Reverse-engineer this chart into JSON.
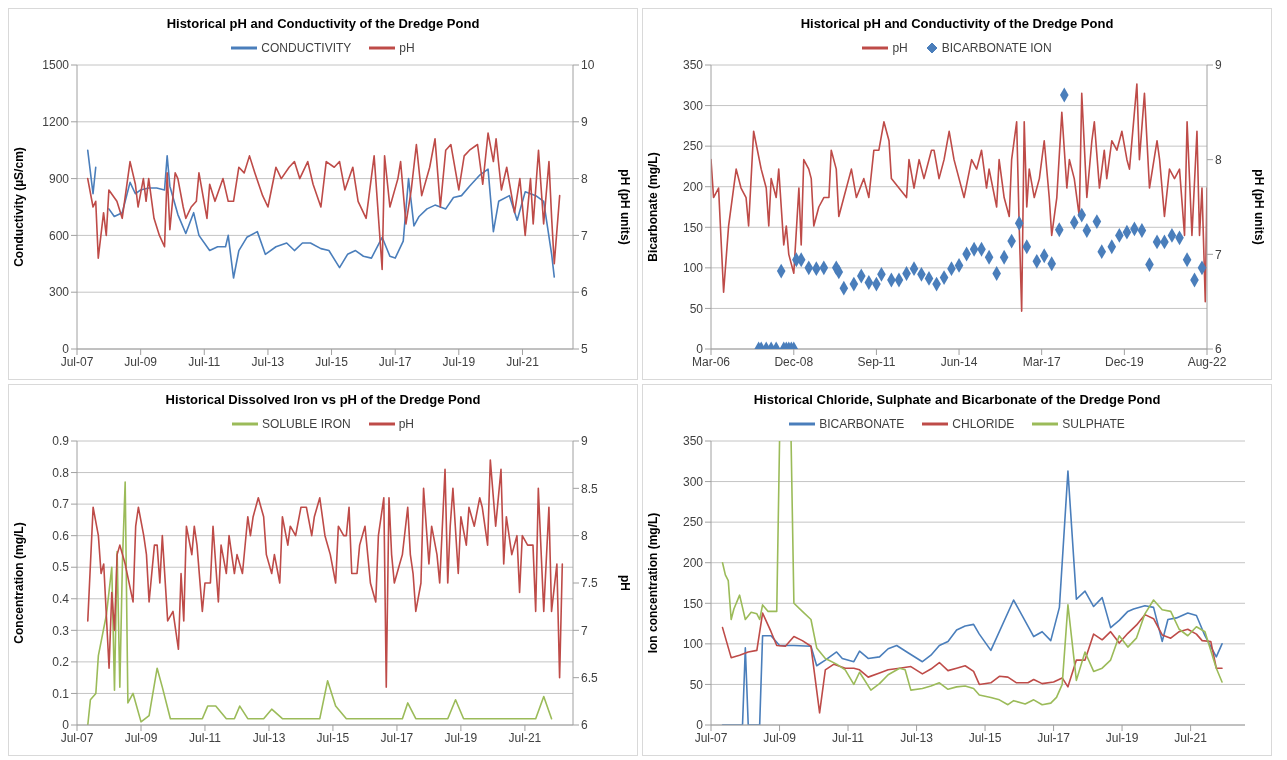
{
  "chart_data": [
    {
      "type": "line",
      "title": "Historical pH and Conductivity of the Dredge Pond",
      "ylabel": "Conductivity (µS/cm)",
      "y2label": "pH (pH units)",
      "xlim": [
        "2007-07",
        "2023-02"
      ],
      "xticks": [
        {
          "value": "2007-07",
          "label": "Jul-07"
        },
        {
          "value": "2009-07",
          "label": "Jul-09"
        },
        {
          "value": "2011-07",
          "label": "Jul-11"
        },
        {
          "value": "2013-07",
          "label": "Jul-13"
        },
        {
          "value": "2015-07",
          "label": "Jul-15"
        },
        {
          "value": "2017-07",
          "label": "Jul-17"
        },
        {
          "value": "2019-07",
          "label": "Jul-19"
        },
        {
          "value": "2021-07",
          "label": "Jul-21"
        }
      ],
      "ylim": [
        0,
        1500
      ],
      "yticks": [
        0,
        300,
        600,
        900,
        1200,
        1500
      ],
      "y2lim": [
        5,
        10
      ],
      "y2ticks": [
        5,
        6,
        7,
        8,
        9,
        10
      ],
      "grid": "y",
      "legend": "top",
      "marker": "none",
      "series": [
        {
          "name": "CONDUCTIVITY",
          "color": "#4a7ebb",
          "x": [
            "2007-11",
            "2008-01",
            "2008-02",
            "2008-04",
            "2008-07",
            "2008-09",
            "2008-12",
            "2009-03",
            "2009-05",
            "2009-07",
            "2009-10",
            "2010-01",
            "2010-04",
            "2010-05",
            "2010-06",
            "2010-09",
            "2010-12",
            "2011-03",
            "2011-05",
            "2011-09",
            "2011-12",
            "2012-03",
            "2012-04",
            "2012-06",
            "2012-08",
            "2012-11",
            "2013-03",
            "2013-06",
            "2013-10",
            "2014-02",
            "2014-05",
            "2014-08",
            "2014-11",
            "2015-03",
            "2015-06",
            "2015-10",
            "2016-01",
            "2016-04",
            "2016-07",
            "2016-10",
            "2017-02",
            "2017-05",
            "2017-07",
            "2017-10",
            "2017-12",
            "2018-02",
            "2018-04",
            "2018-07",
            "2018-10",
            "2019-02",
            "2019-05",
            "2019-08",
            "2019-11",
            "2020-03",
            "2020-06",
            "2020-08",
            "2020-10",
            "2021-02",
            "2021-05",
            "2021-08",
            "2021-12",
            "2022-03",
            "2022-06",
            "2022-07"
          ],
          "values": [
            1050,
            820,
            960,
            null,
            740,
            700,
            720,
            880,
            820,
            840,
            850,
            850,
            840,
            1020,
            860,
            710,
            610,
            720,
            600,
            520,
            540,
            540,
            600,
            375,
            520,
            590,
            620,
            500,
            540,
            560,
            520,
            560,
            560,
            530,
            520,
            430,
            500,
            520,
            490,
            480,
            590,
            490,
            480,
            570,
            900,
            650,
            700,
            740,
            760,
            740,
            800,
            810,
            860,
            920,
            950,
            620,
            780,
            810,
            680,
            830,
            810,
            780,
            500,
            380
          ]
        },
        {
          "name": "pH",
          "color": "#be4b48",
          "axis": "y2",
          "x": [
            "2007-11",
            "2008-01",
            "2008-02",
            "2008-03",
            "2008-05",
            "2008-06",
            "2008-07",
            "2008-10",
            "2008-12",
            "2009-03",
            "2009-05",
            "2009-06",
            "2009-08",
            "2009-09",
            "2009-10",
            "2009-12",
            "2010-02",
            "2010-04",
            "2010-05",
            "2010-06",
            "2010-08",
            "2010-09",
            "2010-11",
            "2010-12",
            "2011-02",
            "2011-04",
            "2011-05",
            "2011-08",
            "2011-09",
            "2011-11",
            "2012-02",
            "2012-04",
            "2012-06",
            "2012-08",
            "2012-10",
            "2012-12",
            "2013-02",
            "2013-05",
            "2013-07",
            "2013-10",
            "2013-12",
            "2014-03",
            "2014-05",
            "2014-07",
            "2014-10",
            "2014-12",
            "2015-03",
            "2015-05",
            "2015-08",
            "2015-10",
            "2015-12",
            "2016-03",
            "2016-05",
            "2016-08",
            "2016-11",
            "2017-02",
            "2017-03",
            "2017-05",
            "2017-08",
            "2017-09",
            "2017-11",
            "2018-01",
            "2018-03",
            "2018-05",
            "2018-08",
            "2018-10",
            "2018-12",
            "2019-02",
            "2019-04",
            "2019-07",
            "2019-09",
            "2019-11",
            "2020-02",
            "2020-04",
            "2020-06",
            "2020-08",
            "2020-09",
            "2020-11",
            "2021-01",
            "2021-04",
            "2021-06",
            "2021-08",
            "2021-10",
            "2021-11",
            "2022-01",
            "2022-03",
            "2022-05",
            "2022-06",
            "2022-07",
            "2022-09"
          ],
          "values": [
            8.0,
            7.5,
            7.6,
            6.6,
            7.4,
            7.0,
            7.8,
            7.6,
            7.3,
            8.3,
            7.9,
            7.5,
            8.0,
            7.6,
            8.0,
            7.3,
            7.0,
            6.8,
            8.1,
            7.1,
            8.1,
            8.0,
            7.5,
            7.3,
            7.5,
            7.6,
            8.1,
            7.3,
            7.9,
            7.6,
            8.0,
            7.6,
            7.6,
            8.2,
            8.1,
            8.4,
            8.1,
            7.7,
            7.5,
            8.2,
            8.0,
            8.2,
            8.3,
            8.0,
            8.3,
            7.9,
            7.5,
            8.3,
            8.2,
            8.3,
            7.8,
            8.2,
            7.6,
            7.3,
            8.4,
            6.4,
            8.4,
            7.5,
            8.0,
            8.3,
            7.2,
            7.8,
            8.6,
            7.7,
            8.2,
            8.7,
            7.5,
            8.5,
            8.6,
            7.8,
            8.4,
            8.5,
            8.6,
            7.9,
            8.8,
            8.3,
            8.7,
            7.8,
            8.2,
            7.4,
            8.0,
            7.0,
            8.0,
            7.2,
            8.5,
            7.2,
            8.3,
            7.3,
            6.5,
            7.7
          ]
        }
      ]
    },
    {
      "type": "line",
      "title": "Historical pH and Conductivity of the Dredge Pond",
      "ylabel": "Bicarbonate (mg/L)",
      "y2label": "pH (pH units)",
      "xlim": [
        "2006-03",
        "2022-08-31"
      ],
      "xticks": [
        {
          "value": "2006-03",
          "label": "Mar-06"
        },
        {
          "value": "2008-12",
          "label": "Dec-08"
        },
        {
          "value": "2011-09",
          "label": "Sep-11"
        },
        {
          "value": "2014-06",
          "label": "Jun-14"
        },
        {
          "value": "2017-03",
          "label": "Mar-17"
        },
        {
          "value": "2019-12",
          "label": "Dec-19"
        },
        {
          "value": "2022-08-31",
          "label": "Aug-22"
        }
      ],
      "ylim": [
        0,
        350
      ],
      "yticks": [
        0,
        50,
        100,
        150,
        200,
        250,
        300,
        350
      ],
      "y2lim": [
        6,
        9
      ],
      "y2ticks": [
        6,
        7,
        8,
        9
      ],
      "grid": "y",
      "legend": "top",
      "marker": "none",
      "series": [
        {
          "name": "pH",
          "color": "#be4b48",
          "axis": "y2",
          "x": [
            "2006-03",
            "2006-04",
            "2006-06",
            "2006-08",
            "2006-10",
            "2006-12",
            "2007-01",
            "2007-03",
            "2007-05",
            "2007-06",
            "2007-08",
            "2007-11",
            "2008-01",
            "2008-02",
            "2008-03",
            "2008-05",
            "2008-06",
            "2008-08",
            "2008-09",
            "2008-10",
            "2008-12",
            "2009-02",
            "2009-03",
            "2009-04",
            "2009-06",
            "2009-07",
            "2009-08",
            "2009-10",
            "2009-12",
            "2010-02",
            "2010-03",
            "2010-05",
            "2010-06",
            "2010-08",
            "2010-11",
            "2011-01",
            "2011-04",
            "2011-06",
            "2011-08",
            "2011-10",
            "2011-12",
            "2012-02",
            "2012-03",
            "2012-06",
            "2012-09",
            "2012-10",
            "2012-12",
            "2013-02",
            "2013-04",
            "2013-07",
            "2013-08",
            "2013-10",
            "2013-12",
            "2014-02",
            "2014-04",
            "2014-06",
            "2014-08",
            "2014-11",
            "2015-01",
            "2015-03",
            "2015-05",
            "2015-06",
            "2015-09",
            "2015-10",
            "2015-12",
            "2016-02",
            "2016-03",
            "2016-05",
            "2016-06",
            "2016-07",
            "2016-08",
            "2016-09",
            "2016-10",
            "2016-12",
            "2017-02",
            "2017-04",
            "2017-06",
            "2017-07",
            "2017-09",
            "2017-11",
            "2018-01",
            "2018-02",
            "2018-04",
            "2018-06",
            "2018-07",
            "2018-09",
            "2018-11",
            "2018-12",
            "2019-02",
            "2019-04",
            "2019-05",
            "2019-07",
            "2019-09",
            "2019-11",
            "2020-01",
            "2020-02",
            "2020-05",
            "2020-06",
            "2020-08",
            "2020-10",
            "2021-01",
            "2021-02",
            "2021-04",
            "2021-06",
            "2021-08",
            "2021-10",
            "2021-12",
            "2022-01",
            "2022-03",
            "2022-05",
            "2022-06",
            "2022-07",
            "2022-08-10",
            "2022-08-31"
          ],
          "values": [
            8.0,
            7.6,
            7.7,
            6.6,
            7.3,
            7.7,
            7.9,
            7.7,
            7.6,
            7.3,
            8.3,
            7.9,
            7.7,
            7.3,
            7.8,
            7.6,
            7.9,
            7.1,
            7.3,
            7.0,
            6.8,
            7.7,
            7.1,
            8.0,
            7.9,
            7.8,
            7.3,
            7.5,
            7.6,
            7.6,
            8.1,
            7.9,
            7.4,
            7.6,
            7.9,
            7.6,
            7.8,
            7.6,
            8.1,
            8.1,
            8.4,
            8.2,
            7.8,
            7.7,
            7.6,
            8.0,
            7.7,
            8.0,
            7.8,
            8.1,
            8.1,
            7.8,
            8.0,
            8.3,
            8.0,
            7.8,
            7.6,
            8.0,
            7.9,
            8.1,
            7.7,
            7.9,
            7.5,
            8.0,
            7.6,
            7.4,
            8.0,
            8.4,
            7.3,
            6.4,
            8.4,
            7.5,
            7.9,
            7.6,
            7.8,
            8.2,
            7.6,
            7.2,
            7.6,
            8.5,
            7.7,
            8.0,
            7.8,
            7.4,
            8.7,
            7.6,
            8.2,
            8.4,
            7.7,
            8.1,
            7.8,
            8.2,
            8.1,
            8.3,
            8.0,
            7.9,
            8.8,
            8.0,
            8.7,
            7.7,
            8.2,
            8.0,
            7.4,
            7.9,
            7.8,
            7.9,
            7.2,
            8.4,
            7.2,
            8.3,
            7.2,
            7.7,
            6.5,
            7.7
          ]
        },
        {
          "name": "BICARBONATE ION",
          "color": "#4a7ebb",
          "type": "scatter",
          "marker": "diamond",
          "x": [
            "2007-10",
            "2007-11",
            "2008-01",
            "2008-03",
            "2008-05",
            "2008-07",
            "2008-08",
            "2008-09",
            "2008-10",
            "2008-11",
            "2008-12",
            "2009-01",
            "2009-03",
            "2009-06",
            "2009-09",
            "2009-12",
            "2010-05",
            "2010-06",
            "2010-08",
            "2010-12",
            "2011-03",
            "2011-06",
            "2011-09",
            "2011-11",
            "2012-03",
            "2012-06",
            "2012-09",
            "2012-12",
            "2013-03",
            "2013-06",
            "2013-09",
            "2013-12",
            "2014-03",
            "2014-06",
            "2014-09",
            "2014-12",
            "2015-03",
            "2015-06",
            "2015-09",
            "2015-12",
            "2016-03",
            "2016-06",
            "2016-09",
            "2017-01",
            "2017-04",
            "2017-07",
            "2017-10",
            "2017-12",
            "2018-04",
            "2018-07",
            "2018-09",
            "2019-01",
            "2019-03",
            "2019-07",
            "2019-10",
            "2020-01",
            "2020-04",
            "2020-07",
            "2020-10",
            "2021-01",
            "2021-04",
            "2021-07",
            "2021-10",
            "2022-01",
            "2022-04",
            "2022-07"
          ],
          "values": [
            0,
            0,
            0,
            0,
            0,
            96,
            0,
            0,
            0,
            0,
            0,
            110,
            110,
            100,
            99,
            100,
            100,
            95,
            75,
            80,
            90,
            82,
            80,
            92,
            85,
            85,
            93,
            99,
            92,
            87,
            80,
            88,
            99,
            103,
            117,
            123,
            123,
            113,
            93,
            113,
            133,
            155,
            126,
            108,
            115,
            105,
            147,
            313,
            156,
            165,
            146,
            157,
            120,
            126,
            140,
            144,
            148,
            146,
            104,
            132,
            132,
            140,
            137,
            110,
            85,
            100
          ]
        }
      ]
    },
    {
      "type": "line",
      "title": "Historical Dissolved Iron vs pH of the Dredge Pond",
      "ylabel": "Concentration (mg/L)",
      "y2label": "pH",
      "xlim": [
        "2007-07",
        "2023-01"
      ],
      "xticks": [
        {
          "value": "2007-07",
          "label": "Jul-07"
        },
        {
          "value": "2009-07",
          "label": "Jul-09"
        },
        {
          "value": "2011-07",
          "label": "Jul-11"
        },
        {
          "value": "2013-07",
          "label": "Jul-13"
        },
        {
          "value": "2015-07",
          "label": "Jul-15"
        },
        {
          "value": "2017-07",
          "label": "Jul-17"
        },
        {
          "value": "2019-07",
          "label": "Jul-19"
        },
        {
          "value": "2021-07",
          "label": "Jul-21"
        }
      ],
      "ylim": [
        0,
        0.9
      ],
      "yticks": [
        0,
        0.1,
        0.2,
        0.3,
        0.4,
        0.5,
        0.6,
        0.7,
        0.8,
        0.9
      ],
      "y2lim": [
        6,
        9
      ],
      "y2ticks": [
        6,
        6.5,
        7,
        7.5,
        8,
        8.5,
        9
      ],
      "grid": "y",
      "legend": "top",
      "marker": "none",
      "series": [
        {
          "name": "SOLUBLE IRON",
          "color": "#9bbb59",
          "x": [
            "2007-11",
            "2007-12",
            "2008-02",
            "2008-03",
            "2008-06",
            "2008-08",
            "2008-09",
            "2008-10",
            "2008-11",
            "2008-12",
            "2009-01",
            "2009-02",
            "2009-04",
            "2009-07",
            "2009-10",
            "2010-01",
            "2010-03",
            "2010-06",
            "2011-06",
            "2011-08",
            "2011-11",
            "2012-03",
            "2012-06",
            "2012-08",
            "2012-11",
            "2013-05",
            "2013-08",
            "2013-12",
            "2015-02",
            "2015-05",
            "2015-08",
            "2015-12",
            "2017-09",
            "2017-11",
            "2018-02",
            "2019-02",
            "2019-05",
            "2019-08",
            "2021-11",
            "2022-02",
            "2022-05"
          ],
          "values": [
            0,
            0.08,
            0.1,
            0.22,
            0.35,
            0.5,
            0.11,
            0.55,
            0.12,
            0.52,
            0.77,
            0.07,
            0.1,
            0.01,
            0.03,
            0.18,
            0.12,
            0.02,
            0.02,
            0.06,
            0.06,
            0.02,
            0.02,
            0.06,
            0.02,
            0.02,
            0.05,
            0.02,
            0.02,
            0.14,
            0.06,
            0.02,
            0.02,
            0.07,
            0.02,
            0.02,
            0.08,
            0.02,
            0.02,
            0.09,
            0.02
          ]
        },
        {
          "name": "pH",
          "color": "#be4b48",
          "axis": "y2",
          "x": [
            "2007-11",
            "2008-01",
            "2008-03",
            "2008-04",
            "2008-05",
            "2008-07",
            "2008-08",
            "2008-09",
            "2008-10",
            "2008-11",
            "2009-01",
            "2009-04",
            "2009-05",
            "2009-06",
            "2009-08",
            "2009-09",
            "2009-10",
            "2009-12",
            "2010-01",
            "2010-02",
            "2010-03",
            "2010-05",
            "2010-07",
            "2010-09",
            "2010-10",
            "2010-11",
            "2010-12",
            "2011-02",
            "2011-03",
            "2011-04",
            "2011-06",
            "2011-07",
            "2011-09",
            "2011-10",
            "2011-12",
            "2012-01",
            "2012-03",
            "2012-04",
            "2012-06",
            "2012-07",
            "2012-09",
            "2012-11",
            "2012-12",
            "2013-01",
            "2013-03",
            "2013-05",
            "2013-06",
            "2013-08",
            "2013-09",
            "2013-11",
            "2013-12",
            "2014-02",
            "2014-03",
            "2014-05",
            "2014-07",
            "2014-09",
            "2014-11",
            "2014-12",
            "2015-02",
            "2015-04",
            "2015-06",
            "2015-08",
            "2015-09",
            "2015-11",
            "2015-12",
            "2016-01",
            "2016-02",
            "2016-04",
            "2016-05",
            "2016-07",
            "2016-09",
            "2016-11",
            "2016-12",
            "2017-02",
            "2017-03",
            "2017-04",
            "2017-05",
            "2017-06",
            "2017-08",
            "2017-09",
            "2017-11",
            "2017-12",
            "2018-01",
            "2018-02",
            "2018-04",
            "2018-05",
            "2018-07",
            "2018-08",
            "2018-10",
            "2018-11",
            "2019-01",
            "2019-02",
            "2019-03",
            "2019-04",
            "2019-06",
            "2019-07",
            "2019-09",
            "2019-10",
            "2019-12",
            "2020-02",
            "2020-03",
            "2020-05",
            "2020-06",
            "2020-08",
            "2020-10",
            "2020-11",
            "2020-12",
            "2021-02",
            "2021-04",
            "2021-05",
            "2021-06",
            "2021-08",
            "2021-10",
            "2021-11",
            "2021-12",
            "2022-02",
            "2022-04",
            "2022-05",
            "2022-07",
            "2022-08",
            "2022-09"
          ],
          "values": [
            7.1,
            8.3,
            8.0,
            7.6,
            7.7,
            6.6,
            7.4,
            7.0,
            7.8,
            7.9,
            7.7,
            7.3,
            8.1,
            8.3,
            8.0,
            7.8,
            7.3,
            7.9,
            7.9,
            7.5,
            8.0,
            7.1,
            7.2,
            6.8,
            7.6,
            7.1,
            8.1,
            7.8,
            8.1,
            7.9,
            7.2,
            7.5,
            7.5,
            8.1,
            7.3,
            7.9,
            7.6,
            8.0,
            7.6,
            7.8,
            7.6,
            8.2,
            8.0,
            8.2,
            8.4,
            8.2,
            7.8,
            7.6,
            7.8,
            7.5,
            8.2,
            7.9,
            8.1,
            8.0,
            8.3,
            8.3,
            8.0,
            8.2,
            8.4,
            8.0,
            7.8,
            7.5,
            8.1,
            8.0,
            8.0,
            8.3,
            7.6,
            7.6,
            7.9,
            8.1,
            7.5,
            7.3,
            8.0,
            8.4,
            6.4,
            8.4,
            7.8,
            7.5,
            7.7,
            7.8,
            8.3,
            7.8,
            7.6,
            7.2,
            7.5,
            8.5,
            7.7,
            8.1,
            7.8,
            7.5,
            8.7,
            7.5,
            8.1,
            8.5,
            7.6,
            8.2,
            7.9,
            8.3,
            8.1,
            8.4,
            8.3,
            7.9,
            8.8,
            8.1,
            8.7,
            7.7,
            8.2,
            7.8,
            8.0,
            7.4,
            8.0,
            7.9,
            7.9,
            7.2,
            8.5,
            7.2,
            8.3,
            7.2,
            7.7,
            6.5,
            7.7
          ]
        }
      ]
    },
    {
      "type": "line",
      "title": "Historical Chloride, Sulphate and Bicarbonate of the Dredge Pond",
      "ylabel": "Ion concentration (mg/L)",
      "xlim": [
        "2007-07",
        "2023-02"
      ],
      "xticks": [
        {
          "value": "2007-07",
          "label": "Jul-07"
        },
        {
          "value": "2009-07",
          "label": "Jul-09"
        },
        {
          "value": "2011-07",
          "label": "Jul-11"
        },
        {
          "value": "2013-07",
          "label": "Jul-13"
        },
        {
          "value": "2015-07",
          "label": "Jul-15"
        },
        {
          "value": "2017-07",
          "label": "Jul-17"
        },
        {
          "value": "2019-07",
          "label": "Jul-19"
        },
        {
          "value": "2021-07",
          "label": "Jul-21"
        }
      ],
      "ylim": [
        0,
        350
      ],
      "yticks": [
        0,
        50,
        100,
        150,
        200,
        250,
        300,
        350
      ],
      "grid": "y",
      "legend": "top",
      "marker": "none",
      "series": [
        {
          "name": "BICARBONATE",
          "color": "#4a7ebb",
          "x": [
            "2007-11",
            "2008-06",
            "2008-07",
            "2008-08",
            "2008-12",
            "2009-01",
            "2009-04",
            "2009-07",
            "2009-09",
            "2009-12",
            "2010-06",
            "2010-08",
            "2010-11",
            "2011-03",
            "2011-05",
            "2011-09",
            "2011-11",
            "2012-02",
            "2012-06",
            "2012-09",
            "2012-12",
            "2013-04",
            "2013-09",
            "2013-12",
            "2014-03",
            "2014-06",
            "2014-09",
            "2014-12",
            "2015-03",
            "2015-05",
            "2015-09",
            "2016-05",
            "2016-12",
            "2017-03",
            "2017-06",
            "2017-09",
            "2017-12",
            "2018-03",
            "2018-06",
            "2018-09",
            "2018-12",
            "2019-03",
            "2019-06",
            "2019-09",
            "2019-11",
            "2020-03",
            "2020-06",
            "2020-09",
            "2020-11",
            "2021-02",
            "2021-06",
            "2021-09",
            "2021-12",
            "2022-04",
            "2022-06"
          ],
          "values": [
            0,
            0,
            95,
            0,
            0,
            110,
            110,
            98,
            98,
            98,
            97,
            73,
            80,
            90,
            82,
            78,
            91,
            82,
            84,
            94,
            98,
            89,
            78,
            86,
            98,
            103,
            117,
            122,
            124,
            112,
            92,
            154,
            109,
            115,
            104,
            145,
            313,
            155,
            165,
            146,
            157,
            120,
            129,
            140,
            143,
            147,
            145,
            103,
            130,
            132,
            138,
            135,
            110,
            84,
            100
          ]
        },
        {
          "name": "CHLORIDE",
          "color": "#be4b48",
          "x": [
            "2007-11",
            "2008-02",
            "2008-05",
            "2008-08",
            "2008-11",
            "2009-01",
            "2009-04",
            "2009-06",
            "2009-09",
            "2009-12",
            "2010-03",
            "2010-06",
            "2010-09",
            "2010-11",
            "2011-02",
            "2011-06",
            "2011-09",
            "2011-11",
            "2012-02",
            "2012-06",
            "2012-09",
            "2013-01",
            "2013-05",
            "2013-09",
            "2013-12",
            "2014-03",
            "2014-06",
            "2014-09",
            "2014-12",
            "2015-03",
            "2015-05",
            "2015-09",
            "2015-12",
            "2016-03",
            "2016-06",
            "2016-10",
            "2016-12",
            "2017-03",
            "2017-07",
            "2017-10",
            "2017-12",
            "2018-03",
            "2018-06",
            "2018-09",
            "2018-12",
            "2019-03",
            "2019-06",
            "2019-09",
            "2019-12",
            "2020-03",
            "2020-06",
            "2020-09",
            "2020-12",
            "2021-03",
            "2021-06",
            "2021-09",
            "2021-11",
            "2022-02",
            "2022-04",
            "2022-06"
          ],
          "values": [
            120,
            83,
            86,
            90,
            92,
            138,
            115,
            98,
            97,
            109,
            104,
            97,
            15,
            68,
            75,
            70,
            70,
            68,
            59,
            64,
            68,
            70,
            72,
            63,
            69,
            77,
            67,
            70,
            73,
            66,
            50,
            52,
            60,
            59,
            52,
            52,
            56,
            51,
            53,
            58,
            47,
            80,
            80,
            112,
            105,
            115,
            101,
            113,
            123,
            136,
            131,
            111,
            107,
            115,
            118,
            112,
            104,
            103,
            70,
            70
          ]
        },
        {
          "name": "SULPHATE",
          "color": "#9bbb59",
          "x": [
            "2007-11",
            "2007-12",
            "2008-01",
            "2008-02",
            "2008-03",
            "2008-05",
            "2008-07",
            "2008-09",
            "2008-11",
            "2008-12",
            "2009-01",
            "2009-03",
            "2009-06",
            "2009-07",
            "2009-09",
            "2009-11",
            "2009-12",
            "2010-03",
            "2010-06",
            "2010-08",
            "2010-11",
            "2011-03",
            "2011-06",
            "2011-09",
            "2011-11",
            "2012-03",
            "2012-06",
            "2012-09",
            "2013-01",
            "2013-03",
            "2013-05",
            "2013-09",
            "2013-12",
            "2014-03",
            "2014-06",
            "2014-09",
            "2014-12",
            "2015-03",
            "2015-05",
            "2015-09",
            "2015-12",
            "2016-03",
            "2016-05",
            "2016-09",
            "2016-12",
            "2017-03",
            "2017-06",
            "2017-08",
            "2017-10",
            "2017-12",
            "2018-03",
            "2018-06",
            "2018-09",
            "2018-12",
            "2019-03",
            "2019-06",
            "2019-09",
            "2019-12",
            "2020-03",
            "2020-06",
            "2020-09",
            "2020-12",
            "2021-03",
            "2021-06",
            "2021-09",
            "2021-12",
            "2022-04",
            "2022-06"
          ],
          "values": [
            200,
            185,
            178,
            130,
            143,
            160,
            130,
            139,
            137,
            130,
            148,
            140,
            140,
            350,
            null,
            350,
            150,
            140,
            130,
            95,
            82,
            75,
            68,
            50,
            65,
            43,
            51,
            62,
            70,
            68,
            43,
            45,
            48,
            52,
            44,
            47,
            48,
            45,
            37,
            34,
            31,
            25,
            30,
            26,
            31,
            25,
            27,
            34,
            50,
            148,
            55,
            90,
            66,
            70,
            80,
            110,
            96,
            107,
            137,
            154,
            142,
            140,
            118,
            110,
            121,
            115,
            70,
            53
          ]
        }
      ]
    }
  ]
}
